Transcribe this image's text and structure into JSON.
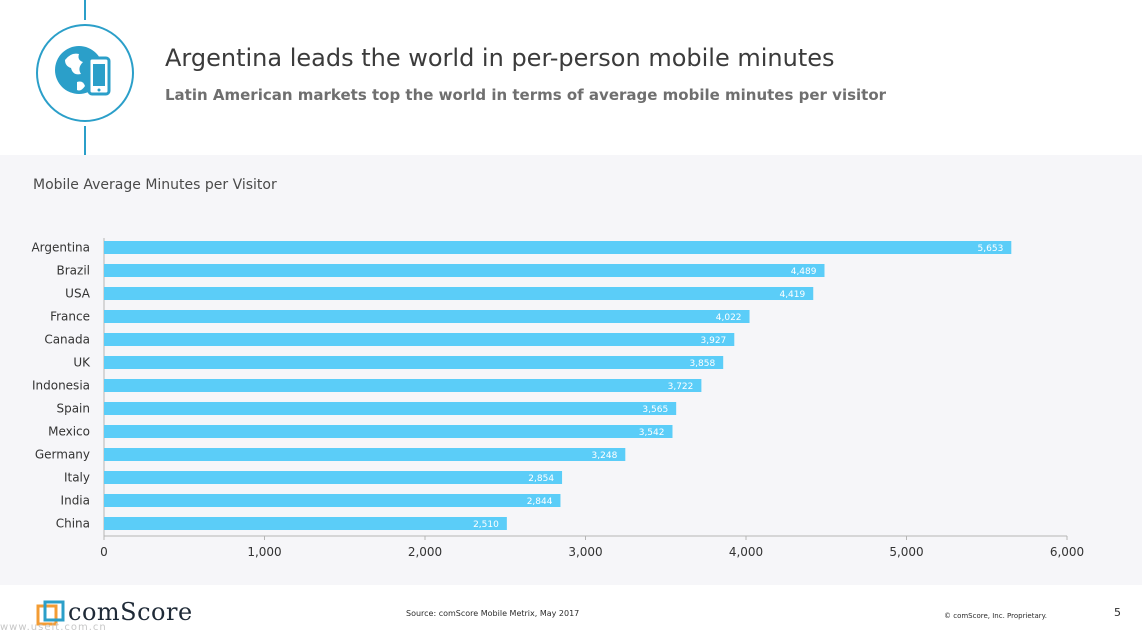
{
  "header": {
    "title": "Argentina leads the world in per-person mobile minutes",
    "subtitle": "Latin American markets top the world in terms of average mobile minutes per visitor"
  },
  "chart_heading": "Mobile Average Minutes per Visitor",
  "colors": {
    "bar": "#5bcdf8",
    "accent": "#2b9fc9",
    "axis": "#b5b5b5",
    "label": "#333333"
  },
  "chart_data": {
    "type": "bar",
    "orientation": "horizontal",
    "title": "Mobile Average Minutes per Visitor",
    "categories": [
      "Argentina",
      "Brazil",
      "USA",
      "France",
      "Canada",
      "UK",
      "Indonesia",
      "Spain",
      "Mexico",
      "Germany",
      "Italy",
      "India",
      "China"
    ],
    "values": [
      5653,
      4489,
      4419,
      4022,
      3927,
      3858,
      3722,
      3565,
      3542,
      3248,
      2854,
      2844,
      2510
    ],
    "value_labels": [
      "5,653",
      "4,489",
      "4,419",
      "4,022",
      "3,927",
      "3,858",
      "3,722",
      "3,565",
      "3,542",
      "3,248",
      "2,854",
      "2,844",
      "2,510"
    ],
    "xlim": [
      0,
      6000
    ],
    "xticks": [
      0,
      1000,
      2000,
      3000,
      4000,
      5000,
      6000
    ],
    "xtick_labels": [
      "0",
      "1,000",
      "2,000",
      "3,000",
      "4,000",
      "5,000",
      "6,000"
    ],
    "xlabel": "",
    "ylabel": "",
    "grid": false
  },
  "footer": {
    "brand": "comScore",
    "source": "Source: comScore Mobile Metrix, May 2017",
    "copyright": "© comScore, Inc. Proprietary.",
    "page": "5",
    "watermark": "www.useit.com.cn"
  }
}
